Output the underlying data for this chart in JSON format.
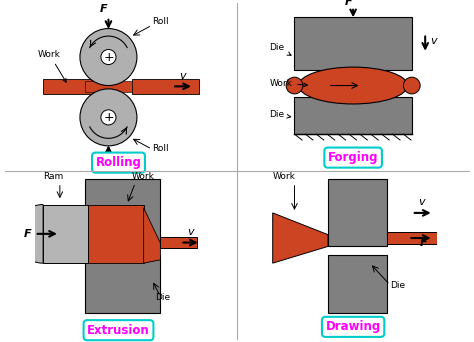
{
  "bg_color": "#ffffff",
  "work_color": "#cc4422",
  "die_color": "#808080",
  "roll_color": "#b0b0b0",
  "label_color": "#ff00ff",
  "text_color": "#000000",
  "border_color": "#00cccc",
  "titles": [
    "Rolling",
    "Forging",
    "Extrusion",
    "Drawing"
  ]
}
